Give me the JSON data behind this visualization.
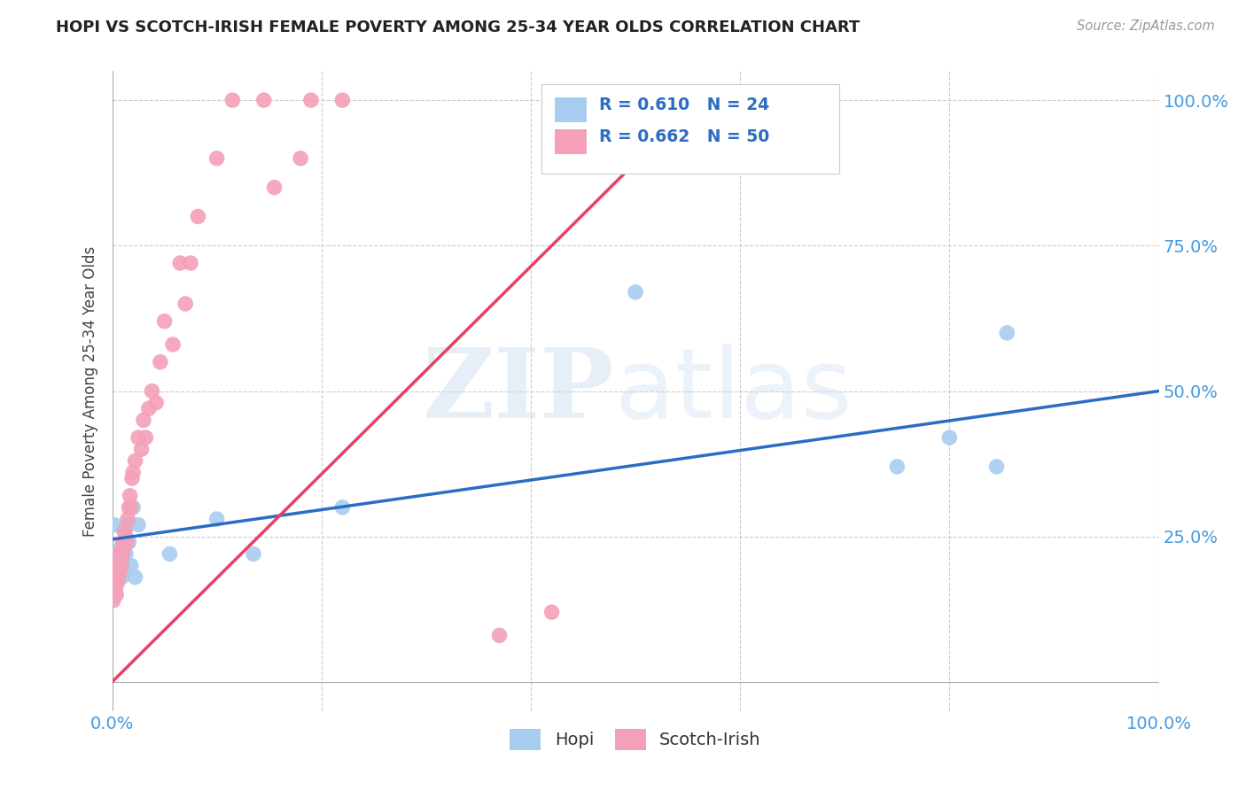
{
  "title": "HOPI VS SCOTCH-IRISH FEMALE POVERTY AMONG 25-34 YEAR OLDS CORRELATION CHART",
  "source": "Source: ZipAtlas.com",
  "ylabel": "Female Poverty Among 25-34 Year Olds",
  "xlim": [
    0,
    1.0
  ],
  "ylim": [
    -0.05,
    1.05
  ],
  "plot_ylim": [
    0.0,
    1.0
  ],
  "hopi_color": "#A8CCF0",
  "scotch_color": "#F4A0B8",
  "hopi_line_color": "#2B6CC4",
  "scotch_line_color": "#E84060",
  "hopi_R": 0.61,
  "hopi_N": 24,
  "scotch_R": 0.662,
  "scotch_N": 50,
  "background_color": "#FFFFFF",
  "grid_color": "#CCCCCC",
  "tick_color": "#4499DD",
  "title_color": "#222222",
  "source_color": "#999999",
  "ylabel_color": "#444444",
  "hopi_x": [
    0.002,
    0.005,
    0.007,
    0.008,
    0.009,
    0.01,
    0.011,
    0.012,
    0.013,
    0.015,
    0.016,
    0.018,
    0.02,
    0.022,
    0.025,
    0.055,
    0.1,
    0.135,
    0.22,
    0.5,
    0.75,
    0.8,
    0.845,
    0.855
  ],
  "hopi_y": [
    0.27,
    0.22,
    0.2,
    0.23,
    0.18,
    0.21,
    0.26,
    0.19,
    0.22,
    0.27,
    0.24,
    0.2,
    0.3,
    0.18,
    0.27,
    0.22,
    0.28,
    0.22,
    0.3,
    0.67,
    0.37,
    0.42,
    0.37,
    0.6
  ],
  "scotch_x": [
    0.001,
    0.002,
    0.003,
    0.004,
    0.005,
    0.005,
    0.006,
    0.006,
    0.007,
    0.007,
    0.008,
    0.008,
    0.009,
    0.009,
    0.01,
    0.01,
    0.011,
    0.012,
    0.013,
    0.014,
    0.015,
    0.016,
    0.017,
    0.018,
    0.019,
    0.02,
    0.022,
    0.025,
    0.028,
    0.03,
    0.032,
    0.035,
    0.038,
    0.042,
    0.046,
    0.05,
    0.058,
    0.065,
    0.07,
    0.075,
    0.082,
    0.1,
    0.115,
    0.145,
    0.155,
    0.18,
    0.19,
    0.22,
    0.37,
    0.42
  ],
  "scotch_y": [
    0.14,
    0.15,
    0.16,
    0.15,
    0.17,
    0.19,
    0.18,
    0.2,
    0.19,
    0.22,
    0.2,
    0.21,
    0.22,
    0.2,
    0.22,
    0.24,
    0.23,
    0.26,
    0.25,
    0.24,
    0.28,
    0.3,
    0.32,
    0.3,
    0.35,
    0.36,
    0.38,
    0.42,
    0.4,
    0.45,
    0.42,
    0.47,
    0.5,
    0.48,
    0.55,
    0.62,
    0.58,
    0.72,
    0.65,
    0.72,
    0.8,
    0.9,
    1.0,
    1.0,
    0.85,
    0.9,
    1.0,
    1.0,
    0.08,
    0.12
  ],
  "hopi_line_x0": 0.0,
  "hopi_line_y0": 0.245,
  "hopi_line_x1": 1.0,
  "hopi_line_y1": 0.5,
  "scotch_line_x0": 0.0,
  "scotch_line_y0": 0.0,
  "scotch_line_x1": 0.56,
  "scotch_line_y1": 1.0
}
